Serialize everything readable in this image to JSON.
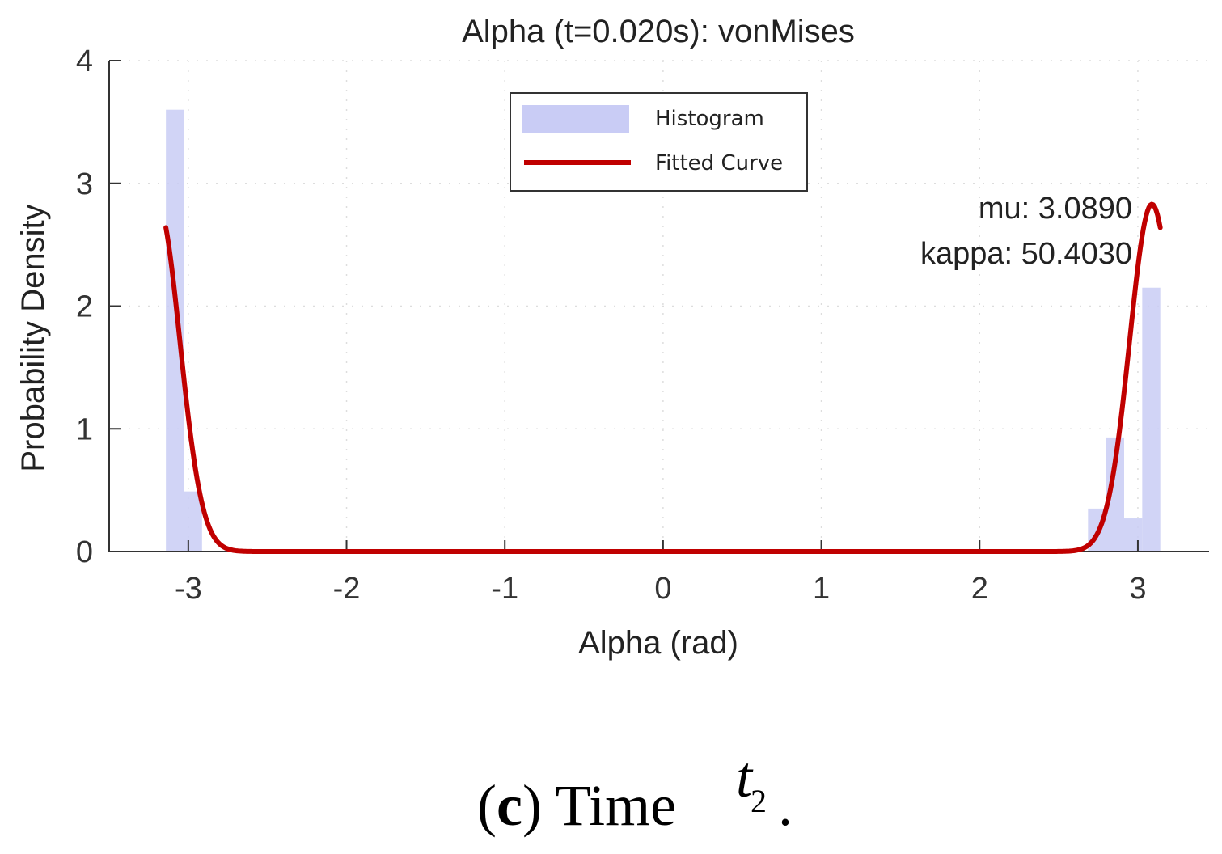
{
  "chart_data": {
    "type": "bar",
    "title": "Alpha (t=0.020s): vonMises",
    "xlabel": "Alpha (rad)",
    "ylabel": "Probability Density",
    "xlim": [
      -3.5,
      3.45
    ],
    "ylim": [
      0,
      4
    ],
    "xticks": [
      -3,
      -2,
      -1,
      0,
      1,
      2,
      3
    ],
    "xtick_labels": [
      "-3",
      "-2",
      "-1",
      "0",
      "1",
      "2",
      "3"
    ],
    "yticks": [
      0,
      1,
      2,
      3,
      4
    ],
    "ytick_labels": [
      "0",
      "1",
      "2",
      "3",
      "4"
    ],
    "grid": true,
    "legend": {
      "position": "top-center",
      "entries": [
        {
          "label": "Histogram",
          "kind": "patch",
          "color": "#c9ccf5"
        },
        {
          "label": "Fitted Curve",
          "kind": "line",
          "color": "#c00000"
        }
      ]
    },
    "histogram": {
      "name": "Histogram",
      "color": "#c9ccf5",
      "bin_width": 0.1142,
      "bins": [
        {
          "left": -3.1416,
          "value": 3.6
        },
        {
          "left": -3.0274,
          "value": 0.49
        },
        {
          "left": 2.685,
          "value": 0.35
        },
        {
          "left": 2.7992,
          "value": 0.93
        },
        {
          "left": 2.9134,
          "value": 0.27
        },
        {
          "left": 3.0276,
          "value": 2.15
        }
      ]
    },
    "fitted_curve": {
      "name": "Fitted Curve",
      "color": "#c00000",
      "distribution": "vonMises",
      "mu": 3.089,
      "kappa": 50.403,
      "x_range": [
        -3.1416,
        3.1416
      ],
      "peak_scale": 2.83
    },
    "annotations": [
      "mu: 3.0890",
      "kappa: 50.4030"
    ]
  },
  "caption": {
    "label": "c",
    "text": "Time",
    "variable": "t",
    "subscript": "2",
    "trailing": "."
  }
}
